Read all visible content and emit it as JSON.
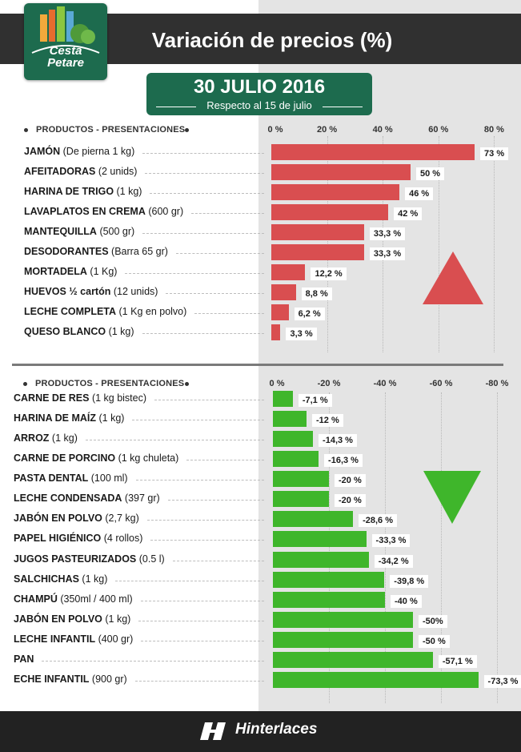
{
  "title": "Variación de precios (%)",
  "logo": {
    "line1": "Cesta",
    "line2": "Petare"
  },
  "date": {
    "main": "30 JULIO 2016",
    "sub": "Respecto al 15 de julio"
  },
  "footer": {
    "brand": "Hinterlaces"
  },
  "colors": {
    "increase": "#d94e50",
    "decrease": "#3fb62b",
    "header": "#303030",
    "accent": "#1d6b4e"
  },
  "chart_data": [
    {
      "type": "bar",
      "orientation": "horizontal",
      "header": "PRODUCTOS - PRESENTACIONES",
      "xlim": [
        0,
        80
      ],
      "ticks": [
        "0 %",
        "20 %",
        "40 %",
        "60 %",
        "80 %"
      ],
      "indicator": "up-triangle",
      "items": [
        {
          "name": "JAMÓN",
          "detail": "(De pierna 1 kg)",
          "value": 73,
          "label": "73 %"
        },
        {
          "name": "AFEITADORAS",
          "detail": "(2 unids)",
          "value": 50,
          "label": "50 %"
        },
        {
          "name": "HARINA DE  TRIGO",
          "detail": "(1 kg)",
          "value": 46,
          "label": "46 %"
        },
        {
          "name": "LAVAPLATOS EN CREMA",
          "detail": "(600 gr)",
          "value": 42,
          "label": "42 %"
        },
        {
          "name": "MANTEQUILLA",
          "detail": "(500 gr)",
          "value": 33.3,
          "label": "33,3 %"
        },
        {
          "name": "DESODORANTES",
          "detail": "(Barra 65 gr)",
          "value": 33.3,
          "label": "33,3 %"
        },
        {
          "name": "MORTADELA",
          "detail": "(1 Kg)",
          "value": 12.2,
          "label": "12,2 %"
        },
        {
          "name": "HUEVOS ½ cartón",
          "detail": "(12 unids)",
          "value": 8.8,
          "label": "8,8 %"
        },
        {
          "name": "LECHE COMPLETA",
          "detail": " (1 Kg en polvo)",
          "value": 6.2,
          "label": "6,2 %"
        },
        {
          "name": "QUESO BLANCO",
          "detail": "(1 kg)",
          "value": 3.3,
          "label": "3,3 %"
        }
      ]
    },
    {
      "type": "bar",
      "orientation": "horizontal",
      "header": "PRODUCTOS - PRESENTACIONES",
      "xlim": [
        0,
        -80
      ],
      "ticks": [
        "0 %",
        "-20 %",
        "-40 %",
        "-60 %",
        "-80 %"
      ],
      "indicator": "down-triangle",
      "items": [
        {
          "name": "CARNE DE RES",
          "detail": "(1 kg bistec)",
          "value": -7.1,
          "label": "-7,1 %"
        },
        {
          "name": "HARINA DE MAÍZ",
          "detail": "(1 kg)",
          "value": -12,
          "label": "-12 %"
        },
        {
          "name": "ARROZ",
          "detail": "(1 kg)",
          "value": -14.3,
          "label": "-14,3 %"
        },
        {
          "name": "CARNE DE PORCINO",
          "detail": "(1 kg chuleta)",
          "value": -16.3,
          "label": "-16,3 %"
        },
        {
          "name": "PASTA DENTAL",
          "detail": "(100 ml)",
          "value": -20,
          "label": "-20 %"
        },
        {
          "name": "LECHE CONDENSADA",
          "detail": "(397 gr)",
          "value": -20,
          "label": "-20 %"
        },
        {
          "name": "JABÓN EN POLVO",
          "detail": "(2,7 kg)",
          "value": -28.6,
          "label": "-28,6 %"
        },
        {
          "name": "PAPEL HIGIÉNICO",
          "detail": "(4 rollos)",
          "value": -33.3,
          "label": "-33,3 %"
        },
        {
          "name": "JUGOS PASTEURIZADOS",
          "detail": "(0.5 l)",
          "value": -34.2,
          "label": "-34,2 %"
        },
        {
          "name": "SALCHICHAS",
          "detail": "(1 kg)",
          "value": -39.8,
          "label": "-39,8 %"
        },
        {
          "name": "CHAMPÚ",
          "detail": "(350ml / 400 ml)",
          "value": -40,
          "label": "-40 %"
        },
        {
          "name": "JABÓN EN POLVO",
          "detail": "(1 kg)",
          "value": -50,
          "label": "-50%"
        },
        {
          "name": "LECHE INFANTIL",
          "detail": "(400 gr)",
          "value": -50,
          "label": "-50 %"
        },
        {
          "name": "PAN",
          "detail": "",
          "value": -57.1,
          "label": "-57,1 %"
        },
        {
          "name": "ECHE INFANTIL",
          "detail": "  (900 gr)",
          "value": -73.3,
          "label": "-73,3 %"
        }
      ]
    }
  ]
}
